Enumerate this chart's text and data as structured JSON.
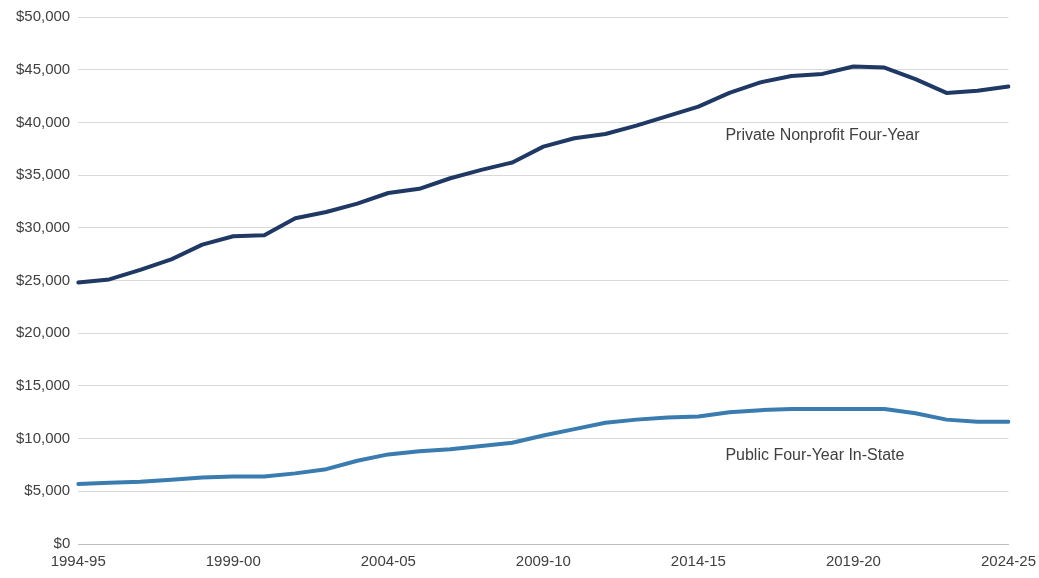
{
  "chart_data": {
    "type": "line",
    "categories": [
      "1994-95",
      null,
      null,
      null,
      null,
      "1999-00",
      null,
      null,
      null,
      null,
      "2004-05",
      null,
      null,
      null,
      null,
      "2009-10",
      null,
      null,
      null,
      null,
      "2014-15",
      null,
      null,
      null,
      null,
      "2019-20",
      null,
      null,
      null,
      null,
      "2024-25"
    ],
    "series": [
      {
        "name": "Private Nonprofit Four-Year",
        "color": "#1f3864",
        "values": [
          24800,
          25100,
          26000,
          27000,
          28400,
          29200,
          29300,
          30900,
          31500,
          32300,
          33300,
          33700,
          34700,
          35500,
          36200,
          37700,
          38500,
          38900,
          39700,
          40600,
          41500,
          42800,
          43800,
          44400,
          44600,
          45300,
          45200,
          44100,
          42800,
          43000,
          43400
        ]
      },
      {
        "name": "Public Four-Year In-State",
        "color": "#3a7bb0",
        "values": [
          5700,
          5800,
          5900,
          6100,
          6300,
          6400,
          6400,
          6700,
          7100,
          7900,
          8500,
          8800,
          9000,
          9300,
          9600,
          10300,
          10900,
          11500,
          11800,
          12000,
          12100,
          12500,
          12700,
          12800,
          12800,
          12800,
          12800,
          12400,
          11800,
          11600,
          11600
        ]
      }
    ],
    "ylim": [
      0,
      50000
    ],
    "yticks": [
      {
        "value": 0,
        "label": "$0"
      },
      {
        "value": 5000,
        "label": "$5,000"
      },
      {
        "value": 10000,
        "label": "$10,000"
      },
      {
        "value": 15000,
        "label": "$15,000"
      },
      {
        "value": 20000,
        "label": "$20,000"
      },
      {
        "value": 25000,
        "label": "$25,000"
      },
      {
        "value": 30000,
        "label": "$30,000"
      },
      {
        "value": 35000,
        "label": "$35,000"
      },
      {
        "value": 40000,
        "label": "$40,000"
      },
      {
        "value": 45000,
        "label": "$45,000"
      },
      {
        "value": 50000,
        "label": "$50,000"
      }
    ],
    "grid": "y",
    "legend": false,
    "marker": "none",
    "line_style": "solid"
  }
}
